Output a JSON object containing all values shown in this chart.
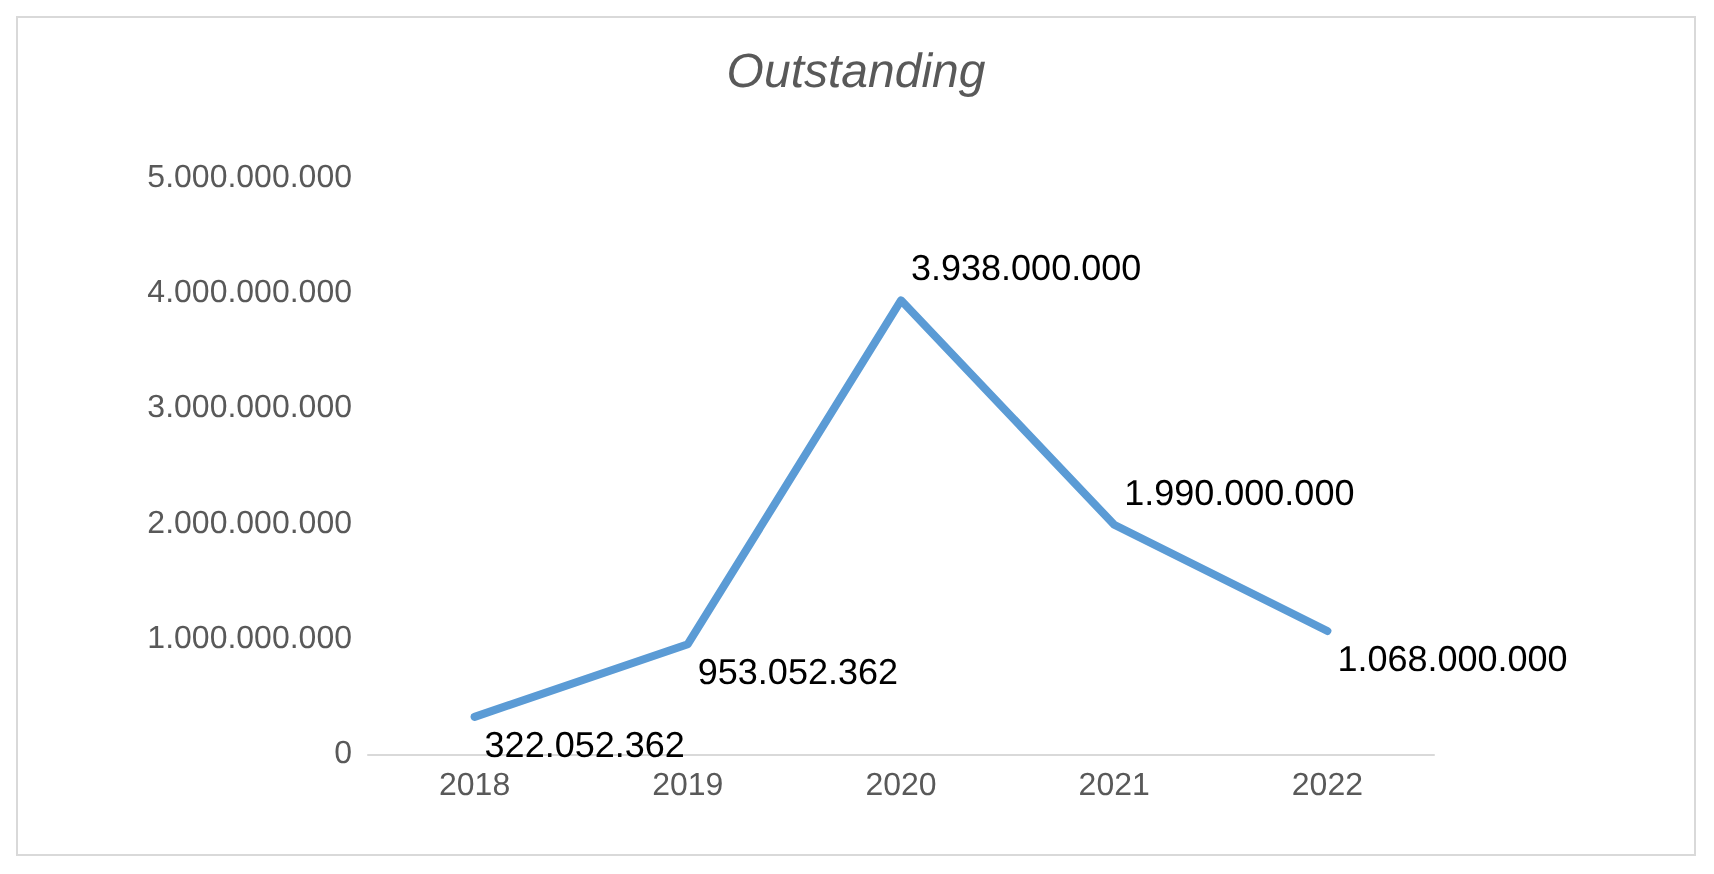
{
  "chart_data": {
    "type": "line",
    "title": "Outstanding",
    "categories": [
      "2018",
      "2019",
      "2020",
      "2021",
      "2022"
    ],
    "series": [
      {
        "color": "#5b9bd5",
        "values": [
          322052362,
          953052362,
          3938000000,
          1990000000,
          1068000000
        ],
        "value_labels": [
          "322.052.362",
          "953.052.362",
          "3.938.000.000",
          "1.990.000.000",
          "1.068.000.000"
        ]
      }
    ],
    "ylim": [
      0,
      5000000000
    ],
    "yticks": [
      {
        "value": 0,
        "label": "0"
      },
      {
        "value": 1000000000,
        "label": "1.000.000.000"
      },
      {
        "value": 2000000000,
        "label": "2.000.000.000"
      },
      {
        "value": 3000000000,
        "label": "3.000.000.000"
      },
      {
        "value": 4000000000,
        "label": "4.000.000.000"
      },
      {
        "value": 5000000000,
        "label": "5.000.000.000"
      }
    ],
    "grid": false,
    "marker": "none",
    "line_style": "solid"
  }
}
